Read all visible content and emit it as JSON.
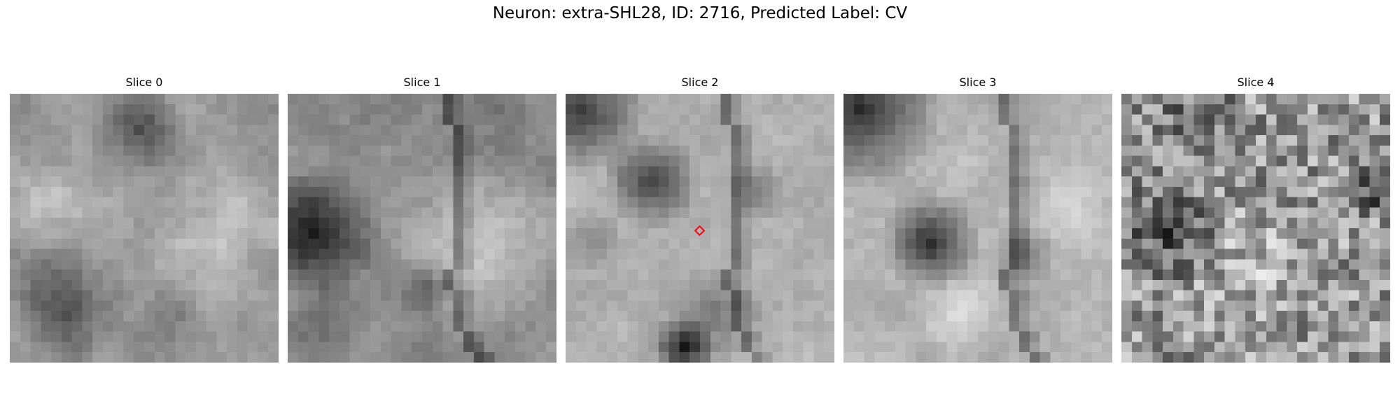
{
  "figure": {
    "title": "Neuron: extra-SHL28, ID: 2716, Predicted Label: CV"
  },
  "panels": [
    {
      "title": "Slice 0"
    },
    {
      "title": "Slice 1"
    },
    {
      "title": "Slice 2"
    },
    {
      "title": "Slice 3"
    },
    {
      "title": "Slice 4"
    }
  ],
  "colors": {
    "marker": "#ff0000",
    "colormap": "grayscale"
  },
  "marker": {
    "shape": "diamond",
    "slice": "Slice 2"
  }
}
